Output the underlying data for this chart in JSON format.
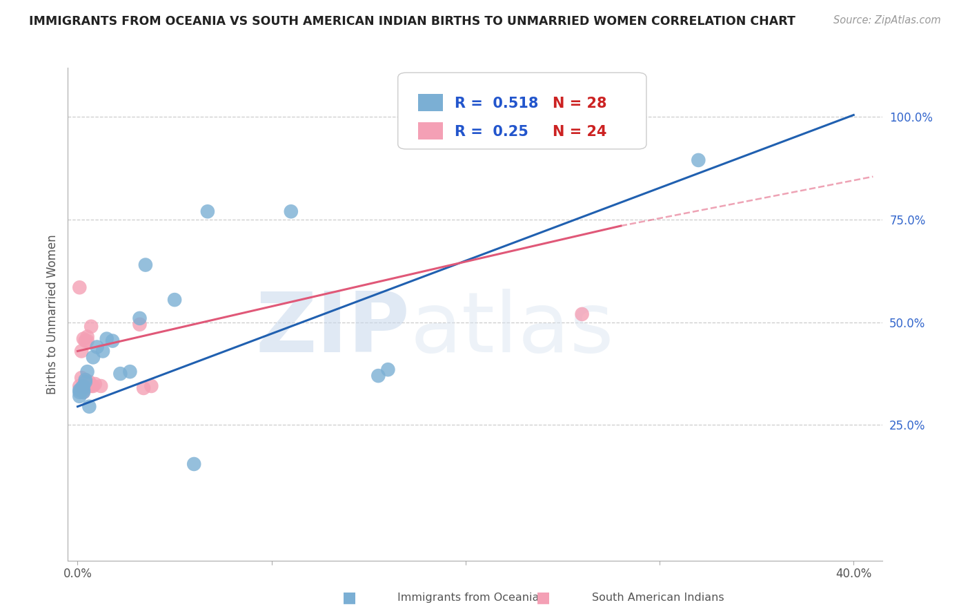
{
  "title": "IMMIGRANTS FROM OCEANIA VS SOUTH AMERICAN INDIAN BIRTHS TO UNMARRIED WOMEN CORRELATION CHART",
  "source": "Source: ZipAtlas.com",
  "xlabel_blue": "Immigrants from Oceania",
  "xlabel_pink": "South American Indians",
  "ylabel": "Births to Unmarried Women",
  "x_tick_pos": [
    0.0,
    0.1,
    0.2,
    0.3,
    0.4
  ],
  "x_tick_labels": [
    "0.0%",
    "",
    "",
    "",
    "40.0%"
  ],
  "y_ticks": [
    0.25,
    0.5,
    0.75,
    1.0
  ],
  "y_tick_labels": [
    "25.0%",
    "50.0%",
    "75.0%",
    "100.0%"
  ],
  "xlim": [
    -0.005,
    0.415
  ],
  "ylim": [
    -0.08,
    1.12
  ],
  "R_blue": 0.518,
  "N_blue": 28,
  "R_pink": 0.25,
  "N_pink": 24,
  "blue_color": "#7bafd4",
  "pink_color": "#f4a0b5",
  "blue_line_color": "#2060b0",
  "pink_line_color": "#e05878",
  "legend_R_color": "#2255cc",
  "legend_N_color": "#cc2222",
  "watermark_zip": "ZIP",
  "watermark_atlas": "atlas",
  "blue_points": [
    [
      0.001,
      0.335
    ],
    [
      0.001,
      0.32
    ],
    [
      0.001,
      0.33
    ],
    [
      0.002,
      0.34
    ],
    [
      0.002,
      0.335
    ],
    [
      0.003,
      0.335
    ],
    [
      0.003,
      0.33
    ],
    [
      0.003,
      0.345
    ],
    [
      0.004,
      0.36
    ],
    [
      0.004,
      0.355
    ],
    [
      0.005,
      0.38
    ],
    [
      0.006,
      0.295
    ],
    [
      0.008,
      0.415
    ],
    [
      0.01,
      0.44
    ],
    [
      0.013,
      0.43
    ],
    [
      0.015,
      0.46
    ],
    [
      0.018,
      0.455
    ],
    [
      0.022,
      0.375
    ],
    [
      0.027,
      0.38
    ],
    [
      0.032,
      0.51
    ],
    [
      0.035,
      0.64
    ],
    [
      0.05,
      0.555
    ],
    [
      0.06,
      0.155
    ],
    [
      0.067,
      0.77
    ],
    [
      0.11,
      0.77
    ],
    [
      0.155,
      0.37
    ],
    [
      0.16,
      0.385
    ],
    [
      0.32,
      0.895
    ]
  ],
  "pink_points": [
    [
      0.001,
      0.585
    ],
    [
      0.001,
      0.345
    ],
    [
      0.002,
      0.365
    ],
    [
      0.002,
      0.43
    ],
    [
      0.003,
      0.46
    ],
    [
      0.003,
      0.345
    ],
    [
      0.003,
      0.345
    ],
    [
      0.003,
      0.33
    ],
    [
      0.004,
      0.345
    ],
    [
      0.004,
      0.36
    ],
    [
      0.004,
      0.455
    ],
    [
      0.005,
      0.465
    ],
    [
      0.005,
      0.455
    ],
    [
      0.005,
      0.345
    ],
    [
      0.006,
      0.355
    ],
    [
      0.007,
      0.345
    ],
    [
      0.007,
      0.49
    ],
    [
      0.008,
      0.345
    ],
    [
      0.009,
      0.35
    ],
    [
      0.012,
      0.345
    ],
    [
      0.032,
      0.495
    ],
    [
      0.034,
      0.34
    ],
    [
      0.038,
      0.345
    ],
    [
      0.26,
      0.52
    ]
  ],
  "blue_trendline": [
    [
      0.0,
      0.295
    ],
    [
      0.4,
      1.005
    ]
  ],
  "pink_trendline_solid": [
    [
      0.0,
      0.43
    ],
    [
      0.28,
      0.735
    ]
  ],
  "pink_trendline_dashed": [
    [
      0.28,
      0.735
    ],
    [
      0.41,
      0.855
    ]
  ]
}
